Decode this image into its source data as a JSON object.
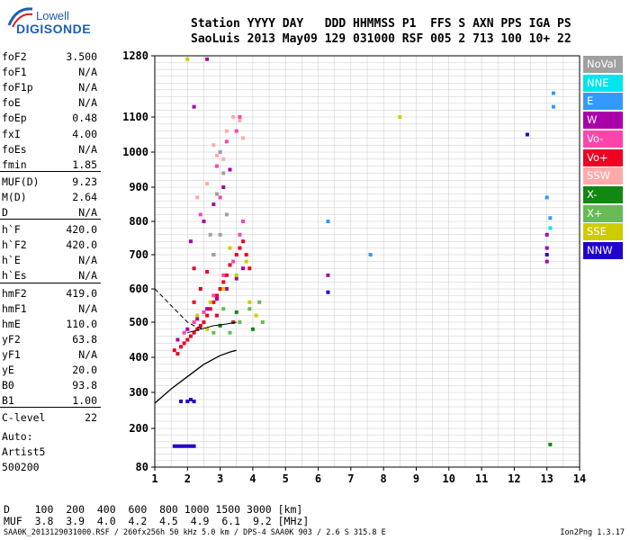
{
  "logo": {
    "top": "Lowell",
    "bottom": "DIGISONDE"
  },
  "header": {
    "line1": "Station YYYY DAY   DDD HHMMSS P1  FFS S AXN PPS IGA PS",
    "line2": "SaoLuis 2013 May09 129 031000 RSF 005 2 713 100 10+ 22"
  },
  "params": [
    {
      "name": "foF2",
      "value": "3.500"
    },
    {
      "name": "foF1",
      "value": "N/A"
    },
    {
      "name": "foF1p",
      "value": "N/A"
    },
    {
      "name": "foE",
      "value": "N/A"
    },
    {
      "name": "foEp",
      "value": "0.48"
    },
    {
      "name": "fxI",
      "value": "4.00"
    },
    {
      "name": "foEs",
      "value": "N/A"
    },
    {
      "name": "fmin",
      "value": "1.85"
    },
    {
      "name": "MUF(D)",
      "value": "9.23"
    },
    {
      "name": "M(D)",
      "value": "2.64"
    },
    {
      "name": "D",
      "value": "N/A"
    },
    {
      "name": "h`F",
      "value": "420.0"
    },
    {
      "name": "h`F2",
      "value": "420.0"
    },
    {
      "name": "h`E",
      "value": "N/A"
    },
    {
      "name": "h`Es",
      "value": "N/A"
    },
    {
      "name": "hmF2",
      "value": "419.0"
    },
    {
      "name": "hmF1",
      "value": "N/A"
    },
    {
      "name": "hmE",
      "value": "110.0"
    },
    {
      "name": "yF2",
      "value": "63.8"
    },
    {
      "name": "yF1",
      "value": "N/A"
    },
    {
      "name": "yE",
      "value": "20.0"
    },
    {
      "name": "B0",
      "value": "93.8"
    },
    {
      "name": "B1",
      "value": "1.00"
    },
    {
      "name": "C-level",
      "value": "22"
    }
  ],
  "auto": [
    "Auto:",
    "Artist5",
    "500200"
  ],
  "legend": [
    {
      "label": "NoVal",
      "color": "#a0a0a0"
    },
    {
      "label": "NNE",
      "color": "#00e5ee"
    },
    {
      "label": "E",
      "color": "#3399ff"
    },
    {
      "label": "W",
      "color": "#aa00aa"
    },
    {
      "label": "Vo-",
      "color": "#ff44aa"
    },
    {
      "label": "Vo+",
      "color": "#ee0022"
    },
    {
      "label": "SSW",
      "color": "#ffaaaa"
    },
    {
      "label": "X-",
      "color": "#118811"
    },
    {
      "label": "X+",
      "color": "#66bb55"
    },
    {
      "label": "SSE",
      "color": "#cccc00"
    },
    {
      "label": "NNW",
      "color": "#2200cc"
    }
  ],
  "footer": {
    "d_row": "D    100  200  400  600  800 1000 1500 3000 [km]",
    "muf_row": "MUF  3.8  3.9  4.0  4.2  4.5  4.9  6.1  9.2 [MHz]",
    "note": "SAA0K_2013129031000.RSF / 260fx256h 50 kHz 5.0 km / DPS-4 SAA0K 903 / 2.6 S 315.8 E",
    "version": "Ion2Png 1.3.17"
  },
  "chart_data": {
    "type": "scatter",
    "title": "",
    "xlabel": "",
    "ylabel": "",
    "xlim": [
      1,
      14
    ],
    "ylim": [
      80,
      1280
    ],
    "xticks": [
      1,
      2,
      3,
      4,
      5,
      6,
      7,
      8,
      9,
      10,
      11,
      12,
      13,
      14
    ],
    "yticks": [
      80,
      200,
      300,
      400,
      500,
      600,
      700,
      800,
      900,
      1000,
      1100,
      1280
    ],
    "grid": true,
    "series": [
      {
        "name": "Vo+",
        "color": "#ee0022",
        "points": [
          [
            1.6,
            420
          ],
          [
            1.7,
            410
          ],
          [
            1.8,
            430
          ],
          [
            1.9,
            440
          ],
          [
            2.0,
            450
          ],
          [
            2.1,
            460
          ],
          [
            2.2,
            470
          ],
          [
            2.3,
            480
          ],
          [
            2.4,
            490
          ],
          [
            2.5,
            500
          ],
          [
            2.6,
            520
          ],
          [
            2.7,
            540
          ],
          [
            2.8,
            560
          ],
          [
            2.9,
            580
          ],
          [
            3.0,
            600
          ],
          [
            3.1,
            620
          ],
          [
            3.2,
            640
          ],
          [
            3.3,
            670
          ],
          [
            3.5,
            700
          ],
          [
            3.6,
            720
          ],
          [
            3.7,
            740
          ],
          [
            3.8,
            700
          ],
          [
            3.9,
            660
          ],
          [
            2.2,
            560
          ],
          [
            2.4,
            600
          ],
          [
            2.6,
            650
          ],
          [
            2.8,
            700
          ],
          [
            2.2,
            660
          ],
          [
            2.9,
            520
          ],
          [
            3.4,
            500
          ]
        ]
      },
      {
        "name": "W",
        "color": "#aa00aa",
        "points": [
          [
            1.7,
            450
          ],
          [
            2.0,
            480
          ],
          [
            2.3,
            510
          ],
          [
            2.6,
            540
          ],
          [
            2.9,
            570
          ],
          [
            3.2,
            600
          ],
          [
            3.5,
            630
          ],
          [
            3.7,
            660
          ],
          [
            2.1,
            740
          ],
          [
            2.5,
            800
          ],
          [
            2.8,
            850
          ],
          [
            3.1,
            900
          ],
          [
            3.3,
            950
          ],
          [
            2.2,
            1130
          ],
          [
            2.6,
            1270
          ],
          [
            6.3,
            640
          ],
          [
            13.0,
            720
          ],
          [
            13.0,
            760
          ],
          [
            13.0,
            680
          ]
        ]
      },
      {
        "name": "Vo-",
        "color": "#ff44aa",
        "points": [
          [
            1.9,
            470
          ],
          [
            2.2,
            500
          ],
          [
            2.5,
            530
          ],
          [
            2.8,
            580
          ],
          [
            3.1,
            640
          ],
          [
            3.4,
            680
          ],
          [
            3.6,
            760
          ],
          [
            3.7,
            800
          ],
          [
            2.9,
            960
          ],
          [
            3.2,
            1030
          ],
          [
            3.5,
            1060
          ],
          [
            3.6,
            1100
          ],
          [
            2.4,
            820
          ],
          [
            3.0,
            870
          ]
        ]
      },
      {
        "name": "SSW",
        "color": "#ffaaaa",
        "points": [
          [
            2.3,
            870
          ],
          [
            2.6,
            910
          ],
          [
            2.9,
            990
          ],
          [
            3.2,
            1060
          ],
          [
            3.4,
            1100
          ],
          [
            3.6,
            1090
          ],
          [
            3.7,
            1040
          ],
          [
            2.8,
            1020
          ],
          [
            3.1,
            980
          ]
        ]
      },
      {
        "name": "SSE",
        "color": "#cccc00",
        "points": [
          [
            2.3,
            520
          ],
          [
            2.7,
            560
          ],
          [
            3.1,
            600
          ],
          [
            3.5,
            640
          ],
          [
            3.8,
            680
          ],
          [
            3.9,
            560
          ],
          [
            4.1,
            520
          ],
          [
            2.6,
            480
          ],
          [
            3.3,
            720
          ],
          [
            8.5,
            1100
          ],
          [
            2.0,
            1270
          ]
        ]
      },
      {
        "name": "X+",
        "color": "#66bb55",
        "points": [
          [
            3.3,
            470
          ],
          [
            3.6,
            500
          ],
          [
            3.9,
            540
          ],
          [
            4.2,
            560
          ],
          [
            4.3,
            500
          ],
          [
            2.8,
            470
          ],
          [
            3.1,
            540
          ]
        ]
      },
      {
        "name": "X-",
        "color": "#118811",
        "points": [
          [
            3.0,
            490
          ],
          [
            3.5,
            530
          ],
          [
            4.0,
            480
          ],
          [
            13.1,
            150
          ]
        ]
      },
      {
        "name": "NNW",
        "color": "#2200cc",
        "points": [
          [
            1.6,
            145
          ],
          [
            1.7,
            145
          ],
          [
            1.8,
            145
          ],
          [
            1.9,
            145
          ],
          [
            2.0,
            145
          ],
          [
            2.1,
            145
          ],
          [
            2.2,
            145
          ],
          [
            1.8,
            275
          ],
          [
            2.0,
            275
          ],
          [
            2.1,
            280
          ],
          [
            2.2,
            275
          ],
          [
            12.4,
            1050
          ],
          [
            13.0,
            700
          ],
          [
            6.3,
            590
          ]
        ]
      },
      {
        "name": "E",
        "color": "#3399ff",
        "points": [
          [
            13.2,
            1130
          ],
          [
            13.2,
            1170
          ],
          [
            13.0,
            870
          ],
          [
            13.1,
            810
          ],
          [
            7.6,
            700
          ],
          [
            6.3,
            800
          ]
        ]
      },
      {
        "name": "NNE",
        "color": "#00e5ee",
        "points": [
          [
            13.1,
            780
          ]
        ]
      },
      {
        "name": "NoVal",
        "color": "#a0a0a0",
        "points": [
          [
            2.8,
            700
          ],
          [
            3.0,
            760
          ],
          [
            3.2,
            820
          ],
          [
            2.9,
            880
          ],
          [
            3.1,
            940
          ],
          [
            3.0,
            1000
          ],
          [
            2.7,
            760
          ]
        ]
      }
    ],
    "profile": [
      [
        1.0,
        270
      ],
      [
        1.5,
        310
      ],
      [
        2.0,
        345
      ],
      [
        2.5,
        380
      ],
      [
        3.0,
        405
      ],
      [
        3.3,
        415
      ],
      [
        3.5,
        420
      ]
    ],
    "dashed_trace": [
      [
        1.0,
        600
      ],
      [
        1.4,
        560
      ],
      [
        1.8,
        520
      ],
      [
        2.0,
        500
      ],
      [
        2.2,
        490
      ],
      [
        2.5,
        480
      ]
    ],
    "virtual_trace": [
      [
        2.0,
        470
      ],
      [
        2.4,
        480
      ],
      [
        2.8,
        490
      ],
      [
        3.2,
        495
      ],
      [
        3.5,
        500
      ]
    ]
  }
}
